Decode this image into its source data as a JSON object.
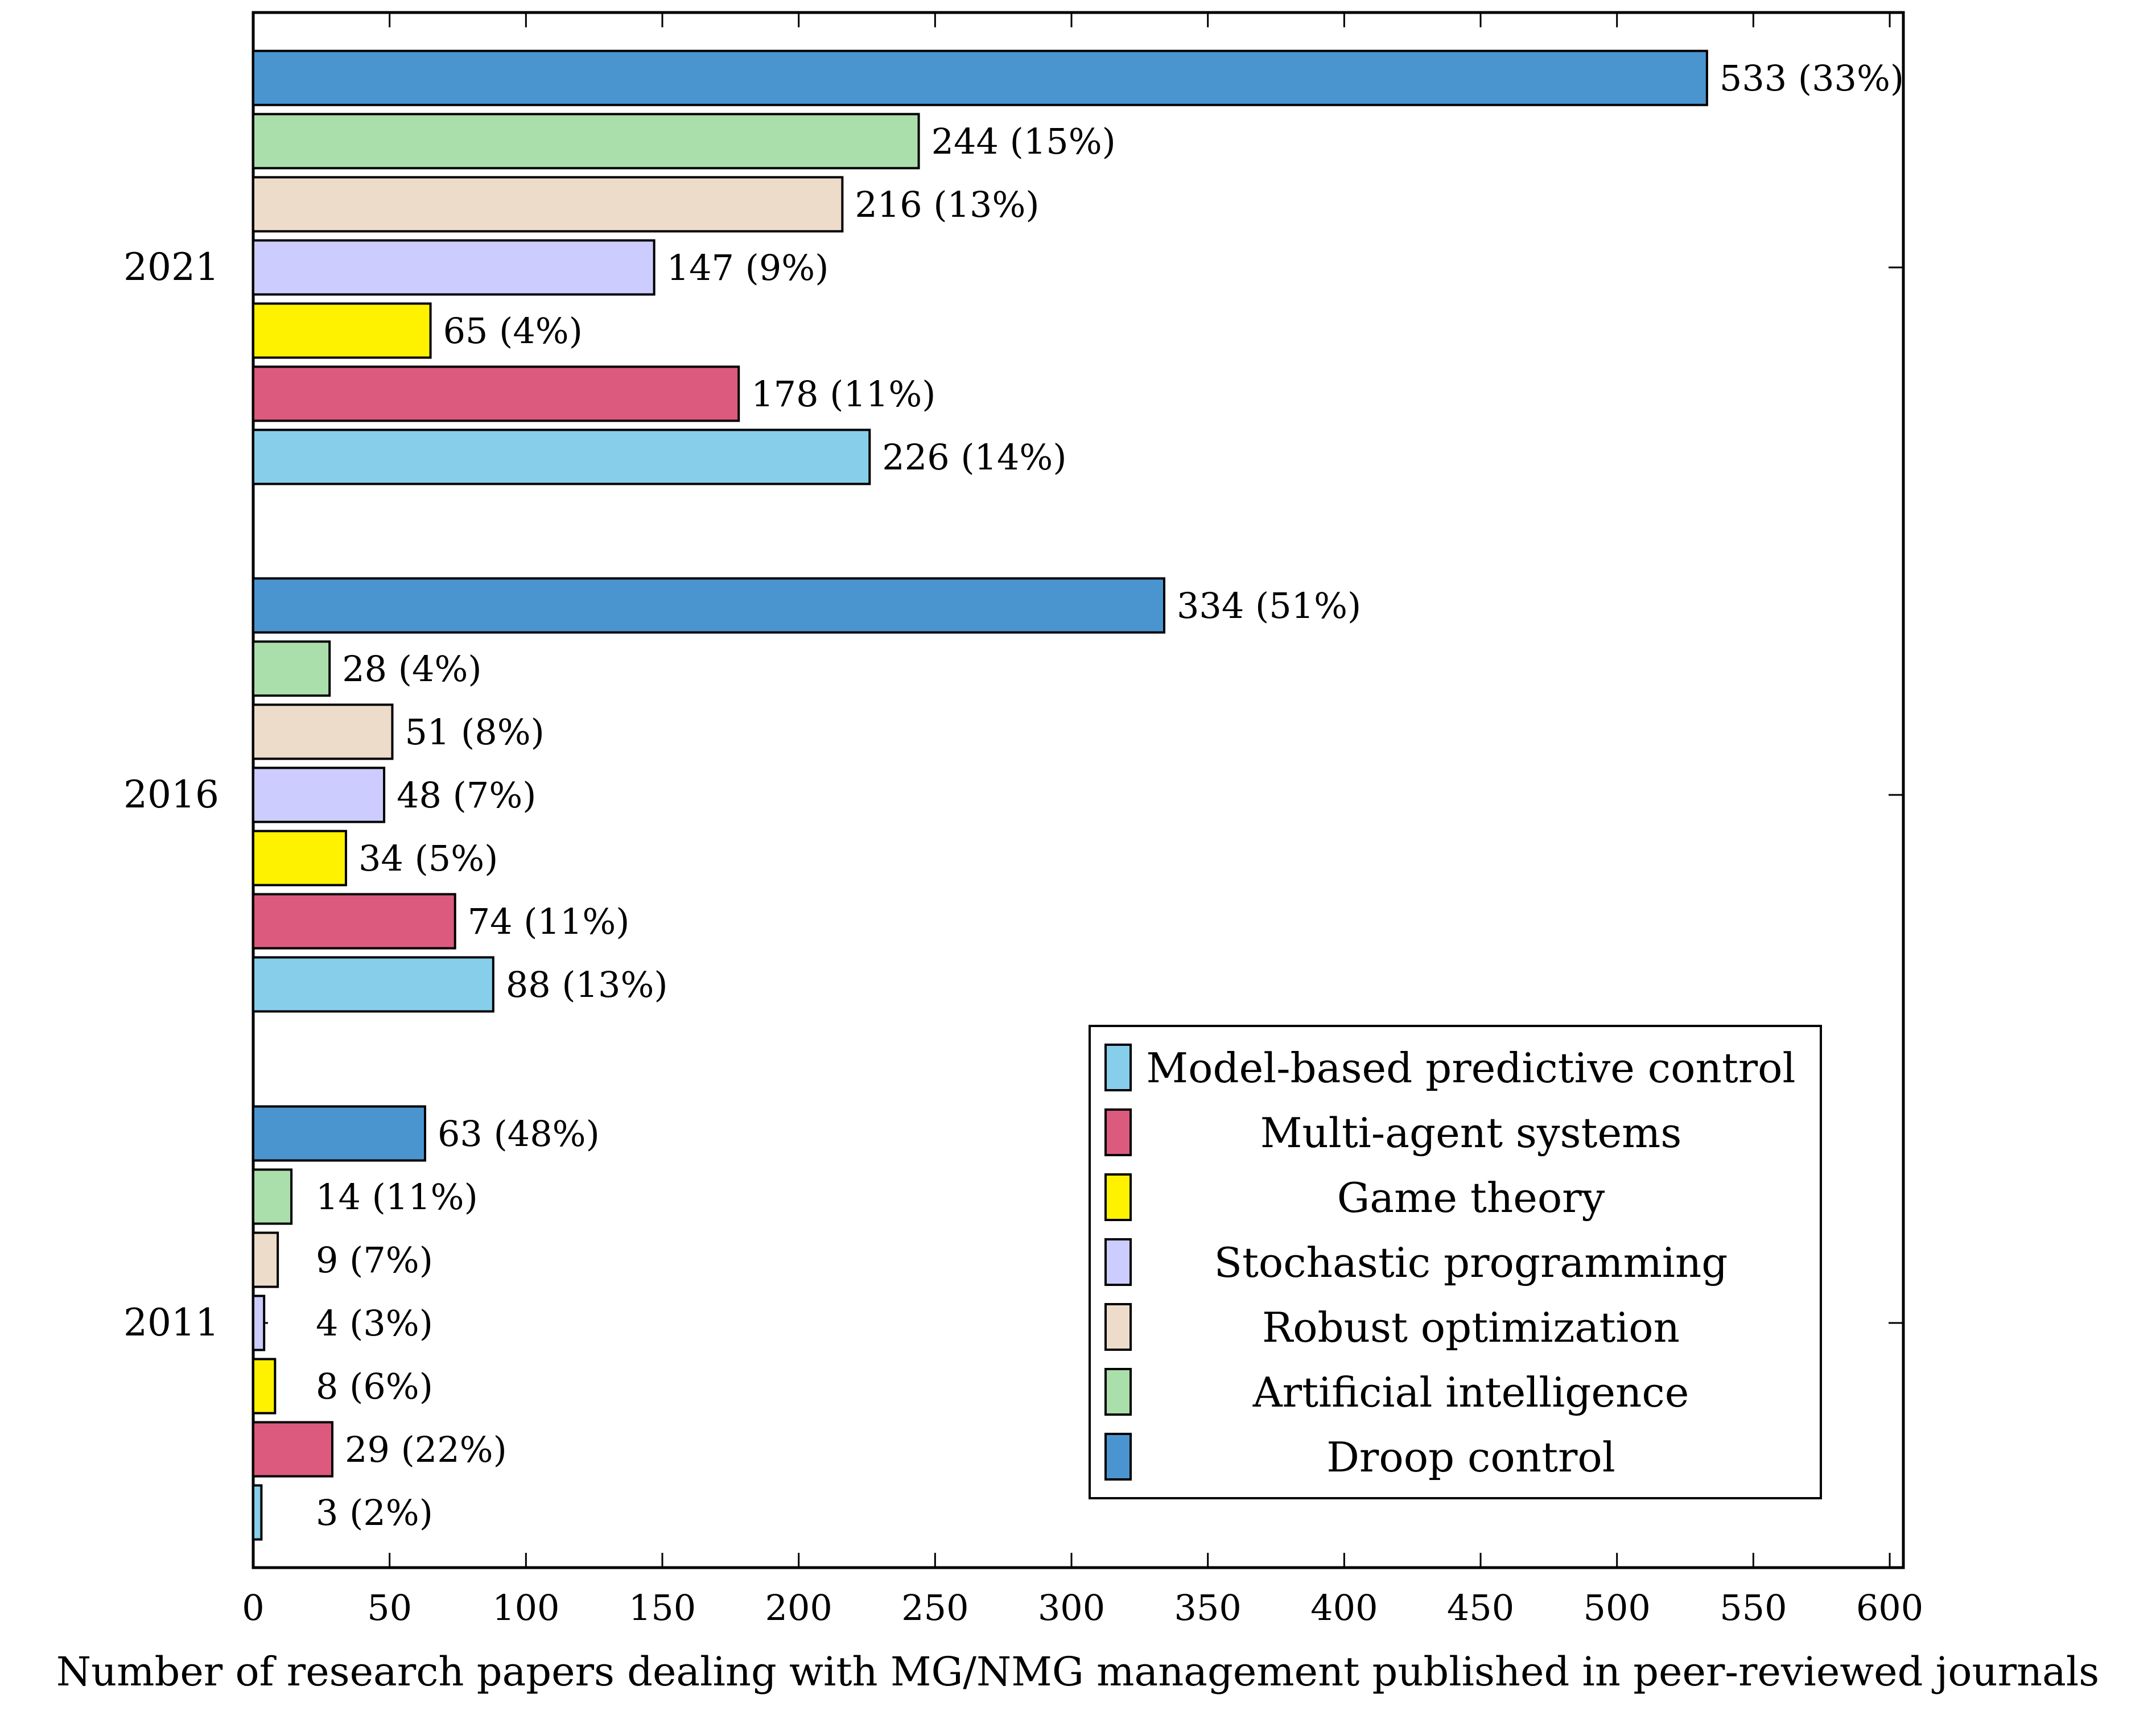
{
  "chart_data": {
    "type": "bar",
    "orientation": "horizontal",
    "xlabel": "Number of research papers dealing with MG/NMG management published in peer-reviewed journals",
    "ylabel": "",
    "xlim": [
      0,
      605
    ],
    "x_ticks": [
      0,
      50,
      100,
      150,
      200,
      250,
      300,
      350,
      400,
      450,
      500,
      550,
      600
    ],
    "categories": [
      "2011",
      "2016",
      "2021"
    ],
    "series": [
      {
        "name": "Model-based predictive control",
        "color": "#87ceeb",
        "values": [
          3,
          88,
          226
        ],
        "labels": [
          "3 (2%)",
          "88 (13%)",
          "226 (14%)"
        ]
      },
      {
        "name": "Multi-agent systems",
        "color": "#dc5a7d",
        "values": [
          29,
          74,
          178
        ],
        "labels": [
          "29 (22%)",
          "74 (11%)",
          "178 (11%)"
        ]
      },
      {
        "name": "Game theory",
        "color": "#fff200",
        "values": [
          8,
          34,
          65
        ],
        "labels": [
          "8 (6%)",
          "34 (5%)",
          "65 (4%)"
        ]
      },
      {
        "name": "Stochastic programming",
        "color": "#ccccff",
        "values": [
          4,
          48,
          147
        ],
        "labels": [
          "4 (3%)",
          "48 (7%)",
          "147 (9%)"
        ]
      },
      {
        "name": "Robust optimization",
        "color": "#eedccb",
        "values": [
          9,
          51,
          216
        ],
        "labels": [
          "9 (7%)",
          "51 (8%)",
          "216 (13%)"
        ]
      },
      {
        "name": "Artificial intelligence",
        "color": "#aadfab",
        "values": [
          14,
          28,
          244
        ],
        "labels": [
          "14 (11%)",
          "28 (4%)",
          "244 (15%)"
        ]
      },
      {
        "name": "Droop control",
        "color": "#4a95d0",
        "values": [
          63,
          334,
          533
        ],
        "labels": [
          "63 (48%)",
          "334 (51%)",
          "533 (33%)"
        ]
      }
    ],
    "legend_position": "bottom-right",
    "grid": false
  }
}
